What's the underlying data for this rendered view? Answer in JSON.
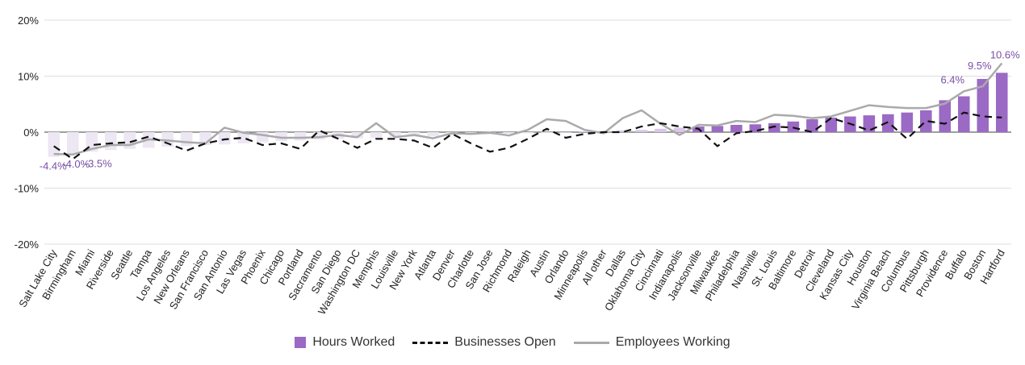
{
  "chart_data": {
    "type": "bar",
    "categories": [
      "Salt Lake City",
      "Birmingham",
      "Miami",
      "Riverside",
      "Seattle",
      "Tampa",
      "Los Angeles",
      "New Orleans",
      "San Francisco",
      "San Antonio",
      "Las Vegas",
      "Phoenix",
      "Chicago",
      "Portland",
      "Sacramento",
      "San Diego",
      "Washington DC",
      "Memphis",
      "Louisville",
      "New York",
      "Atlanta",
      "Denver",
      "Charlotte",
      "San Jose",
      "Richmond",
      "Raleigh",
      "Austin",
      "Orlando",
      "Minneapolis",
      "All other",
      "Dallas",
      "Oklahoma City",
      "Cincinnati",
      "Indianapolis",
      "Jacksonville",
      "Milwaukee",
      "Philadelphia",
      "Nashville",
      "St. Louis",
      "Baltimore",
      "Detroit",
      "Cleveland",
      "Kansas City",
      "Houston",
      "Virginia Beach",
      "Columbus",
      "Pittsburgh",
      "Providence",
      "Buffalo",
      "Boston",
      "Hartford"
    ],
    "series": [
      {
        "name": "Hours Worked",
        "kind": "bar",
        "color": "#9b6ac4",
        "values": [
          -4.4,
          -4.0,
          -3.5,
          -3.2,
          -3.0,
          -2.8,
          -2.6,
          -2.5,
          -2.3,
          -2.2,
          -2.0,
          -1.8,
          -1.6,
          -1.5,
          -1.3,
          -1.2,
          -1.1,
          -1.0,
          -0.9,
          -0.8,
          -0.7,
          -0.6,
          -0.5,
          -0.4,
          -0.3,
          -0.2,
          -0.1,
          0.0,
          0.1,
          0.2,
          0.3,
          0.4,
          0.6,
          0.8,
          1.0,
          1.1,
          1.3,
          1.4,
          1.6,
          1.9,
          2.3,
          2.6,
          2.8,
          3.0,
          3.2,
          3.5,
          3.9,
          5.7,
          6.4,
          9.5,
          10.6
        ],
        "labels": [
          "-4.4%",
          "-4.0%",
          "-3.5%",
          "",
          "",
          "",
          "",
          "",
          "",
          "",
          "",
          "",
          "",
          "",
          "",
          "",
          "",
          "",
          "",
          "",
          "",
          "",
          "",
          "",
          "",
          "",
          "",
          "",
          "",
          "",
          "",
          "",
          "",
          "",
          "",
          "",
          "",
          "",
          "",
          "",
          "",
          "",
          "",
          "",
          "",
          "",
          "",
          "",
          "6.4%",
          "9.5%",
          "10.6%"
        ]
      },
      {
        "name": "Businesses Open",
        "kind": "line",
        "style": "dashed",
        "color": "#111111",
        "values": [
          -2.5,
          -4.8,
          -2.3,
          -2.0,
          -1.8,
          -0.8,
          -2.0,
          -3.3,
          -2.0,
          -1.3,
          -1.0,
          -2.3,
          -2.0,
          -3.0,
          0.3,
          -1.2,
          -2.8,
          -1.2,
          -1.2,
          -1.5,
          -2.8,
          -0.3,
          -2.0,
          -3.5,
          -2.8,
          -1.2,
          0.6,
          -1.0,
          -0.3,
          0.0,
          0.0,
          1.0,
          1.6,
          1.0,
          0.6,
          -2.5,
          -0.2,
          0.2,
          1.0,
          0.8,
          0.0,
          2.5,
          1.5,
          0.3,
          1.8,
          -1.2,
          2.0,
          1.5,
          3.5,
          2.8,
          2.6
        ]
      },
      {
        "name": "Employees Working",
        "kind": "line",
        "style": "solid",
        "color": "#aaaaaa",
        "values": [
          -3.9,
          -4.0,
          -3.0,
          -2.3,
          -2.3,
          -1.3,
          -1.5,
          -1.8,
          -2.0,
          0.8,
          -0.1,
          -0.5,
          -1.0,
          -1.0,
          -0.9,
          -0.5,
          -0.9,
          1.6,
          -0.9,
          -0.5,
          -1.1,
          -0.2,
          -0.3,
          -0.1,
          -0.6,
          0.4,
          2.3,
          2.0,
          0.4,
          -0.2,
          2.5,
          3.9,
          1.5,
          -0.5,
          1.3,
          1.2,
          2.0,
          1.8,
          3.1,
          2.9,
          2.5,
          2.8,
          3.8,
          4.8,
          4.5,
          4.3,
          4.3,
          5.1,
          7.3,
          8.2,
          12.3
        ]
      }
    ],
    "ylim": [
      -20,
      20
    ],
    "yticks": [
      "20%",
      "10%",
      "0%",
      "-10%",
      "-20%"
    ],
    "ytick_values": [
      20,
      10,
      0,
      -10,
      -20
    ],
    "grid": true,
    "legend_position": "bottom-center",
    "title": "",
    "xlabel": "",
    "ylabel": ""
  },
  "legend": {
    "hours": "Hours Worked",
    "businesses": "Businesses Open",
    "employees": "Employees Working"
  }
}
